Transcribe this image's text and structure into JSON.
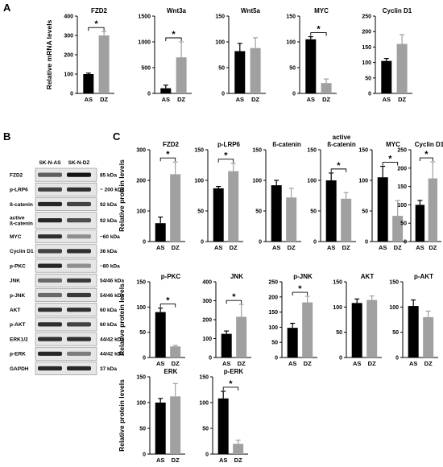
{
  "panels": {
    "A": "A",
    "B": "B",
    "C": "C"
  },
  "colors": {
    "AS": "#000000",
    "DZ": "#a0a0a0"
  },
  "blot": {
    "columns": [
      "SK-N-AS",
      "SK-N-DZ"
    ],
    "rows": [
      {
        "label": "FZD2",
        "size": "85 kDa",
        "as": 0.55,
        "dz": 0.95
      },
      {
        "label": "p-LRP6",
        "size": "~ 200 kDa",
        "as": 0.7,
        "dz": 0.8
      },
      {
        "label": "ß-catenin",
        "size": "92 kDa",
        "as": 0.85,
        "dz": 0.7
      },
      {
        "label": "active\nß-catenin",
        "size": "92 kDa",
        "as": 0.85,
        "dz": 0.65
      },
      {
        "label": "MYC",
        "size": "~60 kDa",
        "as": 0.8,
        "dz": 0.3
      },
      {
        "label": "Cyclin D1",
        "size": "36 kDa",
        "as": 0.7,
        "dz": 0.8
      },
      {
        "label": "p-PKC",
        "size": "~80 kDa",
        "as": 0.85,
        "dz": 0.3
      },
      {
        "label": "JNK",
        "size": "54/46 kDa",
        "as": 0.5,
        "dz": 0.75
      },
      {
        "label": "p-JNK",
        "size": "54/46 kDa",
        "as": 0.5,
        "dz": 0.75
      },
      {
        "label": "AKT",
        "size": "60 kDa",
        "as": 0.8,
        "dz": 0.8
      },
      {
        "label": "p-AKT",
        "size": "60 kDa",
        "as": 0.8,
        "dz": 0.7
      },
      {
        "label": "ERK1/2",
        "size": "44/42 kDa",
        "as": 0.8,
        "dz": 0.8
      },
      {
        "label": "p-ERK",
        "size": "44/42 kDa",
        "as": 0.85,
        "dz": 0.4
      },
      {
        "label": "GAPDH",
        "size": "37 kDa",
        "as": 0.85,
        "dz": 0.85
      }
    ]
  },
  "chart_data": [
    {
      "type": "bar",
      "panel": "A",
      "title": "FZD2",
      "ylabel": "Relative mRNA levels",
      "ylim": [
        0,
        400
      ],
      "yticks": [
        0,
        100,
        200,
        300,
        400
      ],
      "categories": [
        "AS",
        "DZ"
      ],
      "values": [
        100,
        300
      ],
      "errors": [
        5,
        20
      ],
      "significance": "*"
    },
    {
      "type": "bar",
      "panel": "A",
      "title": "Wnt3a",
      "ylabel": "",
      "ylim": [
        0,
        1500
      ],
      "yticks": [
        0,
        500,
        1000,
        1500
      ],
      "categories": [
        "AS",
        "DZ"
      ],
      "values": [
        100,
        700
      ],
      "errors": [
        60,
        300
      ],
      "significance": "*"
    },
    {
      "type": "bar",
      "panel": "A",
      "title": "Wnt5a",
      "ylabel": "",
      "ylim": [
        0,
        150
      ],
      "yticks": [
        0,
        50,
        100,
        150
      ],
      "categories": [
        "AS",
        "DZ"
      ],
      "values": [
        82,
        88
      ],
      "errors": [
        15,
        20
      ],
      "significance": ""
    },
    {
      "type": "bar",
      "panel": "A",
      "title": "MYC",
      "ylabel": "",
      "ylim": [
        0,
        150
      ],
      "yticks": [
        0,
        50,
        100,
        150
      ],
      "categories": [
        "AS",
        "DZ"
      ],
      "values": [
        105,
        20
      ],
      "errors": [
        5,
        8
      ],
      "significance": "*"
    },
    {
      "type": "bar",
      "panel": "A",
      "title": "Cyclin D1",
      "ylabel": "",
      "ylim": [
        0,
        250
      ],
      "yticks": [
        0,
        50,
        100,
        150,
        200,
        250
      ],
      "categories": [
        "AS",
        "DZ"
      ],
      "values": [
        105,
        160
      ],
      "errors": [
        8,
        30
      ],
      "significance": ""
    },
    {
      "type": "bar",
      "panel": "C",
      "title": "FZD2",
      "ylabel": "Relative protein levels",
      "ylim": [
        0,
        300
      ],
      "yticks": [
        0,
        100,
        200,
        300
      ],
      "categories": [
        "AS",
        "DZ"
      ],
      "values": [
        60,
        220
      ],
      "errors": [
        20,
        40
      ],
      "significance": "*"
    },
    {
      "type": "bar",
      "panel": "C",
      "title": "p-LRP6",
      "ylabel": "",
      "ylim": [
        0,
        150
      ],
      "yticks": [
        0,
        50,
        100,
        150
      ],
      "categories": [
        "AS",
        "DZ"
      ],
      "values": [
        87,
        115
      ],
      "errors": [
        3,
        13
      ],
      "significance": "*"
    },
    {
      "type": "bar",
      "panel": "C",
      "title": "ß-catenin",
      "ylabel": "",
      "ylim": [
        0,
        150
      ],
      "yticks": [
        0,
        50,
        100,
        150
      ],
      "categories": [
        "AS",
        "DZ"
      ],
      "values": [
        92,
        72
      ],
      "errors": [
        8,
        15
      ],
      "significance": ""
    },
    {
      "type": "bar",
      "panel": "C",
      "title": "active\nß-catenin",
      "ylabel": "",
      "ylim": [
        0,
        150
      ],
      "yticks": [
        0,
        50,
        100,
        150
      ],
      "categories": [
        "AS",
        "DZ"
      ],
      "values": [
        100,
        70
      ],
      "errors": [
        12,
        10
      ],
      "significance": "*"
    },
    {
      "type": "bar",
      "panel": "C",
      "title": "MYC",
      "ylabel": "",
      "ylim": [
        0,
        150
      ],
      "yticks": [
        0,
        50,
        100,
        150
      ],
      "categories": [
        "AS",
        "DZ"
      ],
      "values": [
        105,
        42
      ],
      "errors": [
        18,
        25
      ],
      "significance": "*"
    },
    {
      "type": "bar",
      "panel": "C",
      "title": "Cyclin D1",
      "ylabel": "",
      "ylim": [
        0,
        250
      ],
      "yticks": [
        0,
        50,
        100,
        150,
        200,
        250
      ],
      "categories": [
        "AS",
        "DZ"
      ],
      "values": [
        100,
        172
      ],
      "errors": [
        12,
        45
      ],
      "significance": "*"
    },
    {
      "type": "bar",
      "panel": "C",
      "title": "p-PKC",
      "ylabel": "Relative protein levels",
      "ylim": [
        0,
        150
      ],
      "yticks": [
        0,
        50,
        100,
        150
      ],
      "categories": [
        "AS",
        "DZ"
      ],
      "values": [
        90,
        22
      ],
      "errors": [
        8,
        2
      ],
      "significance": "*"
    },
    {
      "type": "bar",
      "panel": "C",
      "title": "JNK",
      "ylabel": "",
      "ylim": [
        0,
        400
      ],
      "yticks": [
        0,
        100,
        200,
        300,
        400
      ],
      "categories": [
        "AS",
        "DZ"
      ],
      "values": [
        125,
        215
      ],
      "errors": [
        15,
        65
      ],
      "significance": "*"
    },
    {
      "type": "bar",
      "panel": "C",
      "title": "p-JNK",
      "ylabel": "",
      "ylim": [
        0,
        250
      ],
      "yticks": [
        0,
        50,
        100,
        150,
        200,
        250
      ],
      "categories": [
        "AS",
        "DZ"
      ],
      "values": [
        98,
        182
      ],
      "errors": [
        15,
        20
      ],
      "significance": "*"
    },
    {
      "type": "bar",
      "panel": "C",
      "title": "AKT",
      "ylabel": "",
      "ylim": [
        0,
        150
      ],
      "yticks": [
        0,
        50,
        100,
        150
      ],
      "categories": [
        "AS",
        "DZ"
      ],
      "values": [
        108,
        114
      ],
      "errors": [
        8,
        8
      ],
      "significance": ""
    },
    {
      "type": "bar",
      "panel": "C",
      "title": "p-AKT",
      "ylabel": "",
      "ylim": [
        0,
        150
      ],
      "yticks": [
        0,
        50,
        100,
        150
      ],
      "categories": [
        "AS",
        "DZ"
      ],
      "values": [
        102,
        80
      ],
      "errors": [
        12,
        12
      ],
      "significance": ""
    },
    {
      "type": "bar",
      "panel": "C",
      "title": "ERK",
      "ylabel": "Relative protein levels",
      "ylim": [
        0,
        150
      ],
      "yticks": [
        0,
        50,
        100,
        150
      ],
      "categories": [
        "AS",
        "DZ"
      ],
      "values": [
        100,
        112
      ],
      "errors": [
        8,
        25
      ],
      "significance": ""
    },
    {
      "type": "bar",
      "panel": "C",
      "title": "p-ERK",
      "ylabel": "",
      "ylim": [
        0,
        150
      ],
      "yticks": [
        0,
        50,
        100,
        150
      ],
      "categories": [
        "AS",
        "DZ"
      ],
      "values": [
        108,
        20
      ],
      "errors": [
        14,
        7
      ],
      "significance": "*"
    }
  ]
}
